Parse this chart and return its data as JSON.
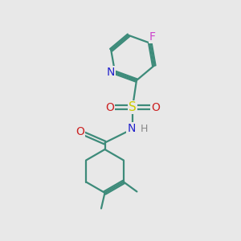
{
  "bg_color": "#e8e8e8",
  "bond_color": "#3d8b7a",
  "atom_colors": {
    "F": "#cc44cc",
    "N": "#2222cc",
    "S": "#cccc00",
    "O": "#cc2222",
    "H": "#888888"
  },
  "font_size": 10,
  "line_width": 1.6,
  "xlim": [
    0,
    10
  ],
  "ylim": [
    0,
    10
  ]
}
